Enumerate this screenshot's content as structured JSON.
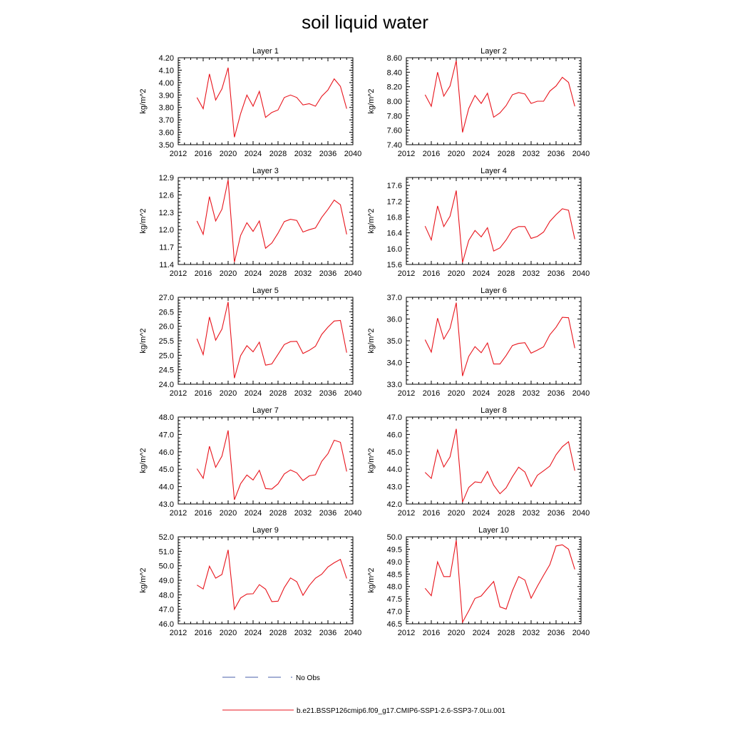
{
  "title": "soil liquid water",
  "colors": {
    "model": "#e8141c",
    "obs": "#4a5fa8",
    "axis": "#000000"
  },
  "legend": {
    "obs_label": "No Obs",
    "model_label": "b.e21.BSSP126cmip6.f09_g17.CMIP6-SSP1-2.6-SSP3-7.0Lu.001"
  },
  "chart_data": [
    {
      "type": "line",
      "title": "Layer 1",
      "ylabel": "kg/m^2",
      "xlim": [
        2012,
        2040
      ],
      "xticks": [
        "2012",
        "2016",
        "2020",
        "2024",
        "2028",
        "2032",
        "2036",
        "2040"
      ],
      "ylim": [
        3.5,
        4.2
      ],
      "yticks": [
        "3.50",
        "3.60",
        "3.70",
        "3.80",
        "3.90",
        "4.00",
        "4.10",
        "4.20"
      ],
      "x": [
        2015,
        2016,
        2017,
        2018,
        2019,
        2020,
        2021,
        2022,
        2023,
        2024,
        2025,
        2026,
        2027,
        2028,
        2029,
        2030,
        2031,
        2032,
        2033,
        2034,
        2035,
        2036,
        2037,
        2038,
        2039
      ],
      "values": [
        3.88,
        3.79,
        4.07,
        3.86,
        3.95,
        4.12,
        3.56,
        3.75,
        3.9,
        3.81,
        3.93,
        3.72,
        3.76,
        3.78,
        3.88,
        3.9,
        3.88,
        3.82,
        3.83,
        3.81,
        3.89,
        3.94,
        4.03,
        3.97,
        3.79
      ]
    },
    {
      "type": "line",
      "title": "Layer 2",
      "ylabel": "kg/m^2",
      "xlim": [
        2012,
        2040
      ],
      "xticks": [
        "2012",
        "2016",
        "2020",
        "2024",
        "2028",
        "2032",
        "2036",
        "2040"
      ],
      "ylim": [
        7.4,
        8.6
      ],
      "yticks": [
        "7.40",
        "7.60",
        "7.80",
        "8.00",
        "8.20",
        "8.40",
        "8.60"
      ],
      "x": [
        2015,
        2016,
        2017,
        2018,
        2019,
        2020,
        2021,
        2022,
        2023,
        2024,
        2025,
        2026,
        2027,
        2028,
        2029,
        2030,
        2031,
        2032,
        2033,
        2034,
        2035,
        2036,
        2037,
        2038,
        2039
      ],
      "values": [
        8.09,
        7.93,
        8.4,
        8.07,
        8.21,
        8.56,
        7.57,
        7.9,
        8.08,
        7.97,
        8.11,
        7.78,
        7.84,
        7.94,
        8.09,
        8.12,
        8.1,
        7.97,
        8.0,
        8.0,
        8.14,
        8.21,
        8.33,
        8.26,
        7.93
      ]
    },
    {
      "type": "line",
      "title": "Layer 3",
      "ylabel": "kg/m^2",
      "xlim": [
        2012,
        2040
      ],
      "xticks": [
        "2012",
        "2016",
        "2020",
        "2024",
        "2028",
        "2032",
        "2036",
        "2040"
      ],
      "ylim": [
        11.4,
        12.9
      ],
      "yticks": [
        "11.4",
        "11.7",
        "12.0",
        "12.3",
        "12.6",
        "12.9"
      ],
      "x": [
        2015,
        2016,
        2017,
        2018,
        2019,
        2020,
        2021,
        2022,
        2023,
        2024,
        2025,
        2026,
        2027,
        2028,
        2029,
        2030,
        2031,
        2032,
        2033,
        2034,
        2035,
        2036,
        2037,
        2038,
        2039
      ],
      "values": [
        12.15,
        11.92,
        12.57,
        12.15,
        12.35,
        12.86,
        11.44,
        11.9,
        12.12,
        11.97,
        12.15,
        11.68,
        11.77,
        11.94,
        12.14,
        12.18,
        12.16,
        11.96,
        12.0,
        12.03,
        12.21,
        12.35,
        12.51,
        12.43,
        11.92
      ]
    },
    {
      "type": "line",
      "title": "Layer 4",
      "ylabel": "kg/m^2",
      "xlim": [
        2012,
        2040
      ],
      "xticks": [
        "2012",
        "2016",
        "2020",
        "2024",
        "2028",
        "2032",
        "2036",
        "2040"
      ],
      "ylim": [
        15.6,
        17.8
      ],
      "yticks": [
        "15.6",
        "16.0",
        "16.4",
        "16.8",
        "17.2",
        "17.6"
      ],
      "x": [
        2015,
        2016,
        2017,
        2018,
        2019,
        2020,
        2021,
        2022,
        2023,
        2024,
        2025,
        2026,
        2027,
        2028,
        2029,
        2030,
        2031,
        2032,
        2033,
        2034,
        2035,
        2036,
        2037,
        2038,
        2039
      ],
      "values": [
        16.57,
        16.22,
        17.08,
        16.56,
        16.82,
        17.47,
        15.65,
        16.21,
        16.46,
        16.3,
        16.53,
        15.94,
        16.02,
        16.22,
        16.48,
        16.56,
        16.56,
        16.26,
        16.31,
        16.42,
        16.69,
        16.86,
        17.01,
        16.97,
        16.24
      ]
    },
    {
      "type": "line",
      "title": "Layer 5",
      "ylabel": "kg/m^2",
      "xlim": [
        2012,
        2040
      ],
      "xticks": [
        "2012",
        "2016",
        "2020",
        "2024",
        "2028",
        "2032",
        "2036",
        "2040"
      ],
      "ylim": [
        24.0,
        27.0
      ],
      "yticks": [
        "24.0",
        "24.5",
        "25.0",
        "25.5",
        "26.0",
        "26.5",
        "27.0"
      ],
      "x": [
        2015,
        2016,
        2017,
        2018,
        2019,
        2020,
        2021,
        2022,
        2023,
        2024,
        2025,
        2026,
        2027,
        2028,
        2029,
        2030,
        2031,
        2032,
        2033,
        2034,
        2035,
        2036,
        2037,
        2038,
        2039
      ],
      "values": [
        25.57,
        25.02,
        26.32,
        25.52,
        25.9,
        26.84,
        24.21,
        24.98,
        25.33,
        25.12,
        25.45,
        24.66,
        24.7,
        25.03,
        25.37,
        25.47,
        25.48,
        25.06,
        25.17,
        25.31,
        25.72,
        25.97,
        26.18,
        26.2,
        25.09
      ]
    },
    {
      "type": "line",
      "title": "Layer 6",
      "ylabel": "kg/m^2",
      "xlim": [
        2012,
        2040
      ],
      "xticks": [
        "2012",
        "2016",
        "2020",
        "2024",
        "2028",
        "2032",
        "2036",
        "2040"
      ],
      "ylim": [
        33.0,
        37.0
      ],
      "yticks": [
        "33.0",
        "34.0",
        "35.0",
        "36.0",
        "37.0"
      ],
      "x": [
        2015,
        2016,
        2017,
        2018,
        2019,
        2020,
        2021,
        2022,
        2023,
        2024,
        2025,
        2026,
        2027,
        2028,
        2029,
        2030,
        2031,
        2032,
        2033,
        2034,
        2035,
        2036,
        2037,
        2038,
        2039
      ],
      "values": [
        35.05,
        34.48,
        36.04,
        35.08,
        35.57,
        36.75,
        33.38,
        34.28,
        34.73,
        34.45,
        34.9,
        33.93,
        33.93,
        34.32,
        34.78,
        34.88,
        34.91,
        34.43,
        34.57,
        34.72,
        35.28,
        35.62,
        36.08,
        36.06,
        34.66
      ]
    },
    {
      "type": "line",
      "title": "Layer 7",
      "ylabel": "kg/m^2",
      "xlim": [
        2012,
        2040
      ],
      "xticks": [
        "2012",
        "2016",
        "2020",
        "2024",
        "2028",
        "2032",
        "2036",
        "2040"
      ],
      "ylim": [
        43.0,
        48.0
      ],
      "yticks": [
        "43.0",
        "44.0",
        "45.0",
        "46.0",
        "47.0",
        "48.0"
      ],
      "x": [
        2015,
        2016,
        2017,
        2018,
        2019,
        2020,
        2021,
        2022,
        2023,
        2024,
        2025,
        2026,
        2027,
        2028,
        2029,
        2030,
        2031,
        2032,
        2033,
        2034,
        2035,
        2036,
        2037,
        2038,
        2039
      ],
      "values": [
        45.03,
        44.48,
        46.32,
        45.11,
        45.75,
        47.23,
        43.24,
        44.17,
        44.67,
        44.38,
        44.94,
        43.89,
        43.86,
        44.16,
        44.73,
        44.96,
        44.79,
        44.35,
        44.62,
        44.68,
        45.45,
        45.89,
        46.67,
        46.55,
        44.87
      ]
    },
    {
      "type": "line",
      "title": "Layer 8",
      "ylabel": "kg/m^2",
      "xlim": [
        2012,
        2040
      ],
      "xticks": [
        "2012",
        "2016",
        "2020",
        "2024",
        "2028",
        "2032",
        "2036",
        "2040"
      ],
      "ylim": [
        42.0,
        47.0
      ],
      "yticks": [
        "42.0",
        "43.0",
        "44.0",
        "45.0",
        "46.0",
        "47.0"
      ],
      "x": [
        2015,
        2016,
        2017,
        2018,
        2019,
        2020,
        2021,
        2022,
        2023,
        2024,
        2025,
        2026,
        2027,
        2028,
        2029,
        2030,
        2031,
        2032,
        2033,
        2034,
        2035,
        2036,
        2037,
        2038,
        2039
      ],
      "values": [
        43.82,
        43.47,
        45.11,
        44.13,
        44.71,
        46.32,
        42.11,
        42.95,
        43.27,
        43.23,
        43.87,
        43.08,
        42.59,
        42.93,
        43.57,
        44.12,
        43.84,
        43.01,
        43.65,
        43.91,
        44.18,
        44.83,
        45.29,
        45.58,
        43.92
      ]
    },
    {
      "type": "line",
      "title": "Layer 9",
      "ylabel": "kg/m^2",
      "xlim": [
        2012,
        2040
      ],
      "xticks": [
        "2012",
        "2016",
        "2020",
        "2024",
        "2028",
        "2032",
        "2036",
        "2040"
      ],
      "ylim": [
        46.0,
        52.0
      ],
      "yticks": [
        "46.0",
        "47.0",
        "48.0",
        "49.0",
        "50.0",
        "51.0",
        "52.0"
      ],
      "x": [
        2015,
        2016,
        2017,
        2018,
        2019,
        2020,
        2021,
        2022,
        2023,
        2024,
        2025,
        2026,
        2027,
        2028,
        2029,
        2030,
        2031,
        2032,
        2033,
        2034,
        2035,
        2036,
        2037,
        2038,
        2039
      ],
      "values": [
        48.67,
        48.4,
        49.97,
        49.15,
        49.4,
        51.1,
        47.0,
        47.78,
        48.05,
        48.07,
        48.7,
        48.39,
        47.53,
        47.56,
        48.5,
        49.16,
        48.9,
        47.96,
        48.64,
        49.15,
        49.42,
        49.92,
        50.21,
        50.44,
        49.13
      ]
    },
    {
      "type": "line",
      "title": "Layer 10",
      "ylabel": "kg/m^2",
      "xlim": [
        2012,
        2040
      ],
      "xticks": [
        "2012",
        "2016",
        "2020",
        "2024",
        "2028",
        "2032",
        "2036",
        "2040"
      ],
      "ylim": [
        46.5,
        50.0
      ],
      "yticks": [
        "46.5",
        "47.0",
        "47.5",
        "48.0",
        "48.5",
        "49.0",
        "49.5",
        "50.0"
      ],
      "x": [
        2015,
        2016,
        2017,
        2018,
        2019,
        2020,
        2021,
        2022,
        2023,
        2024,
        2025,
        2026,
        2027,
        2028,
        2029,
        2030,
        2031,
        2032,
        2033,
        2034,
        2035,
        2036,
        2037,
        2038,
        2039
      ],
      "values": [
        47.93,
        47.63,
        48.99,
        48.4,
        48.4,
        49.86,
        46.56,
        47.02,
        47.52,
        47.62,
        47.92,
        48.2,
        47.18,
        47.09,
        47.83,
        48.4,
        48.26,
        47.53,
        48.01,
        48.45,
        48.88,
        49.63,
        49.68,
        49.5,
        48.69
      ]
    }
  ]
}
